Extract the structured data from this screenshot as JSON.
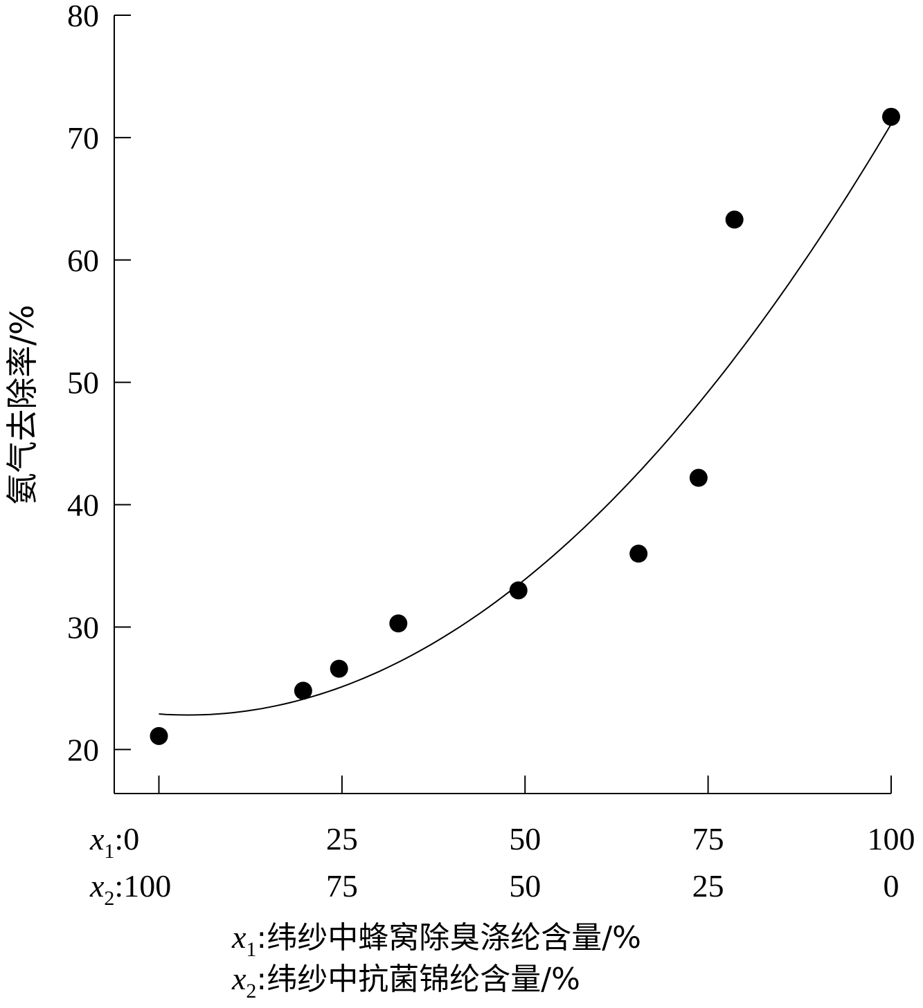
{
  "chart_data": {
    "type": "scatter",
    "title": "",
    "ylabel": "氨气去除率/%",
    "xlabel_lines": [
      {
        "var": "x",
        "sub": "1",
        "text": ":纬纱中蜂窝除臭涤纶含量/%"
      },
      {
        "var": "x",
        "sub": "2",
        "text": ":纬纱中抗菌锦纶含量/%"
      }
    ],
    "ylim": [
      16.4,
      80
    ],
    "xlim": [
      -6.1,
      100
    ],
    "y_ticks": [
      20,
      30,
      40,
      50,
      60,
      70,
      80
    ],
    "x_ticks": [
      0,
      25,
      50,
      75,
      100
    ],
    "x1_tick_labels": [
      "0",
      "25",
      "50",
      "75",
      "100"
    ],
    "x2_tick_labels": [
      "100",
      "75",
      "50",
      "25",
      "0"
    ],
    "row_prefixes": [
      {
        "var": "x",
        "sub": "1",
        "sep": ":"
      },
      {
        "var": "x",
        "sub": "2",
        "sep": ":"
      }
    ],
    "grid": false,
    "points": [
      {
        "x": 0,
        "y": 21.1
      },
      {
        "x": 19.7,
        "y": 24.8
      },
      {
        "x": 24.6,
        "y": 26.6
      },
      {
        "x": 32.7,
        "y": 30.3
      },
      {
        "x": 49.1,
        "y": 33.0
      },
      {
        "x": 65.5,
        "y": 36.0
      },
      {
        "x": 73.7,
        "y": 42.2
      },
      {
        "x": 78.6,
        "y": 63.3
      },
      {
        "x": 100,
        "y": 71.7
      }
    ],
    "fit_curve": {
      "type": "quadratic",
      "a": 0.00524,
      "b": -0.042,
      "c": 22.9,
      "x_range": [
        0,
        100
      ]
    }
  }
}
